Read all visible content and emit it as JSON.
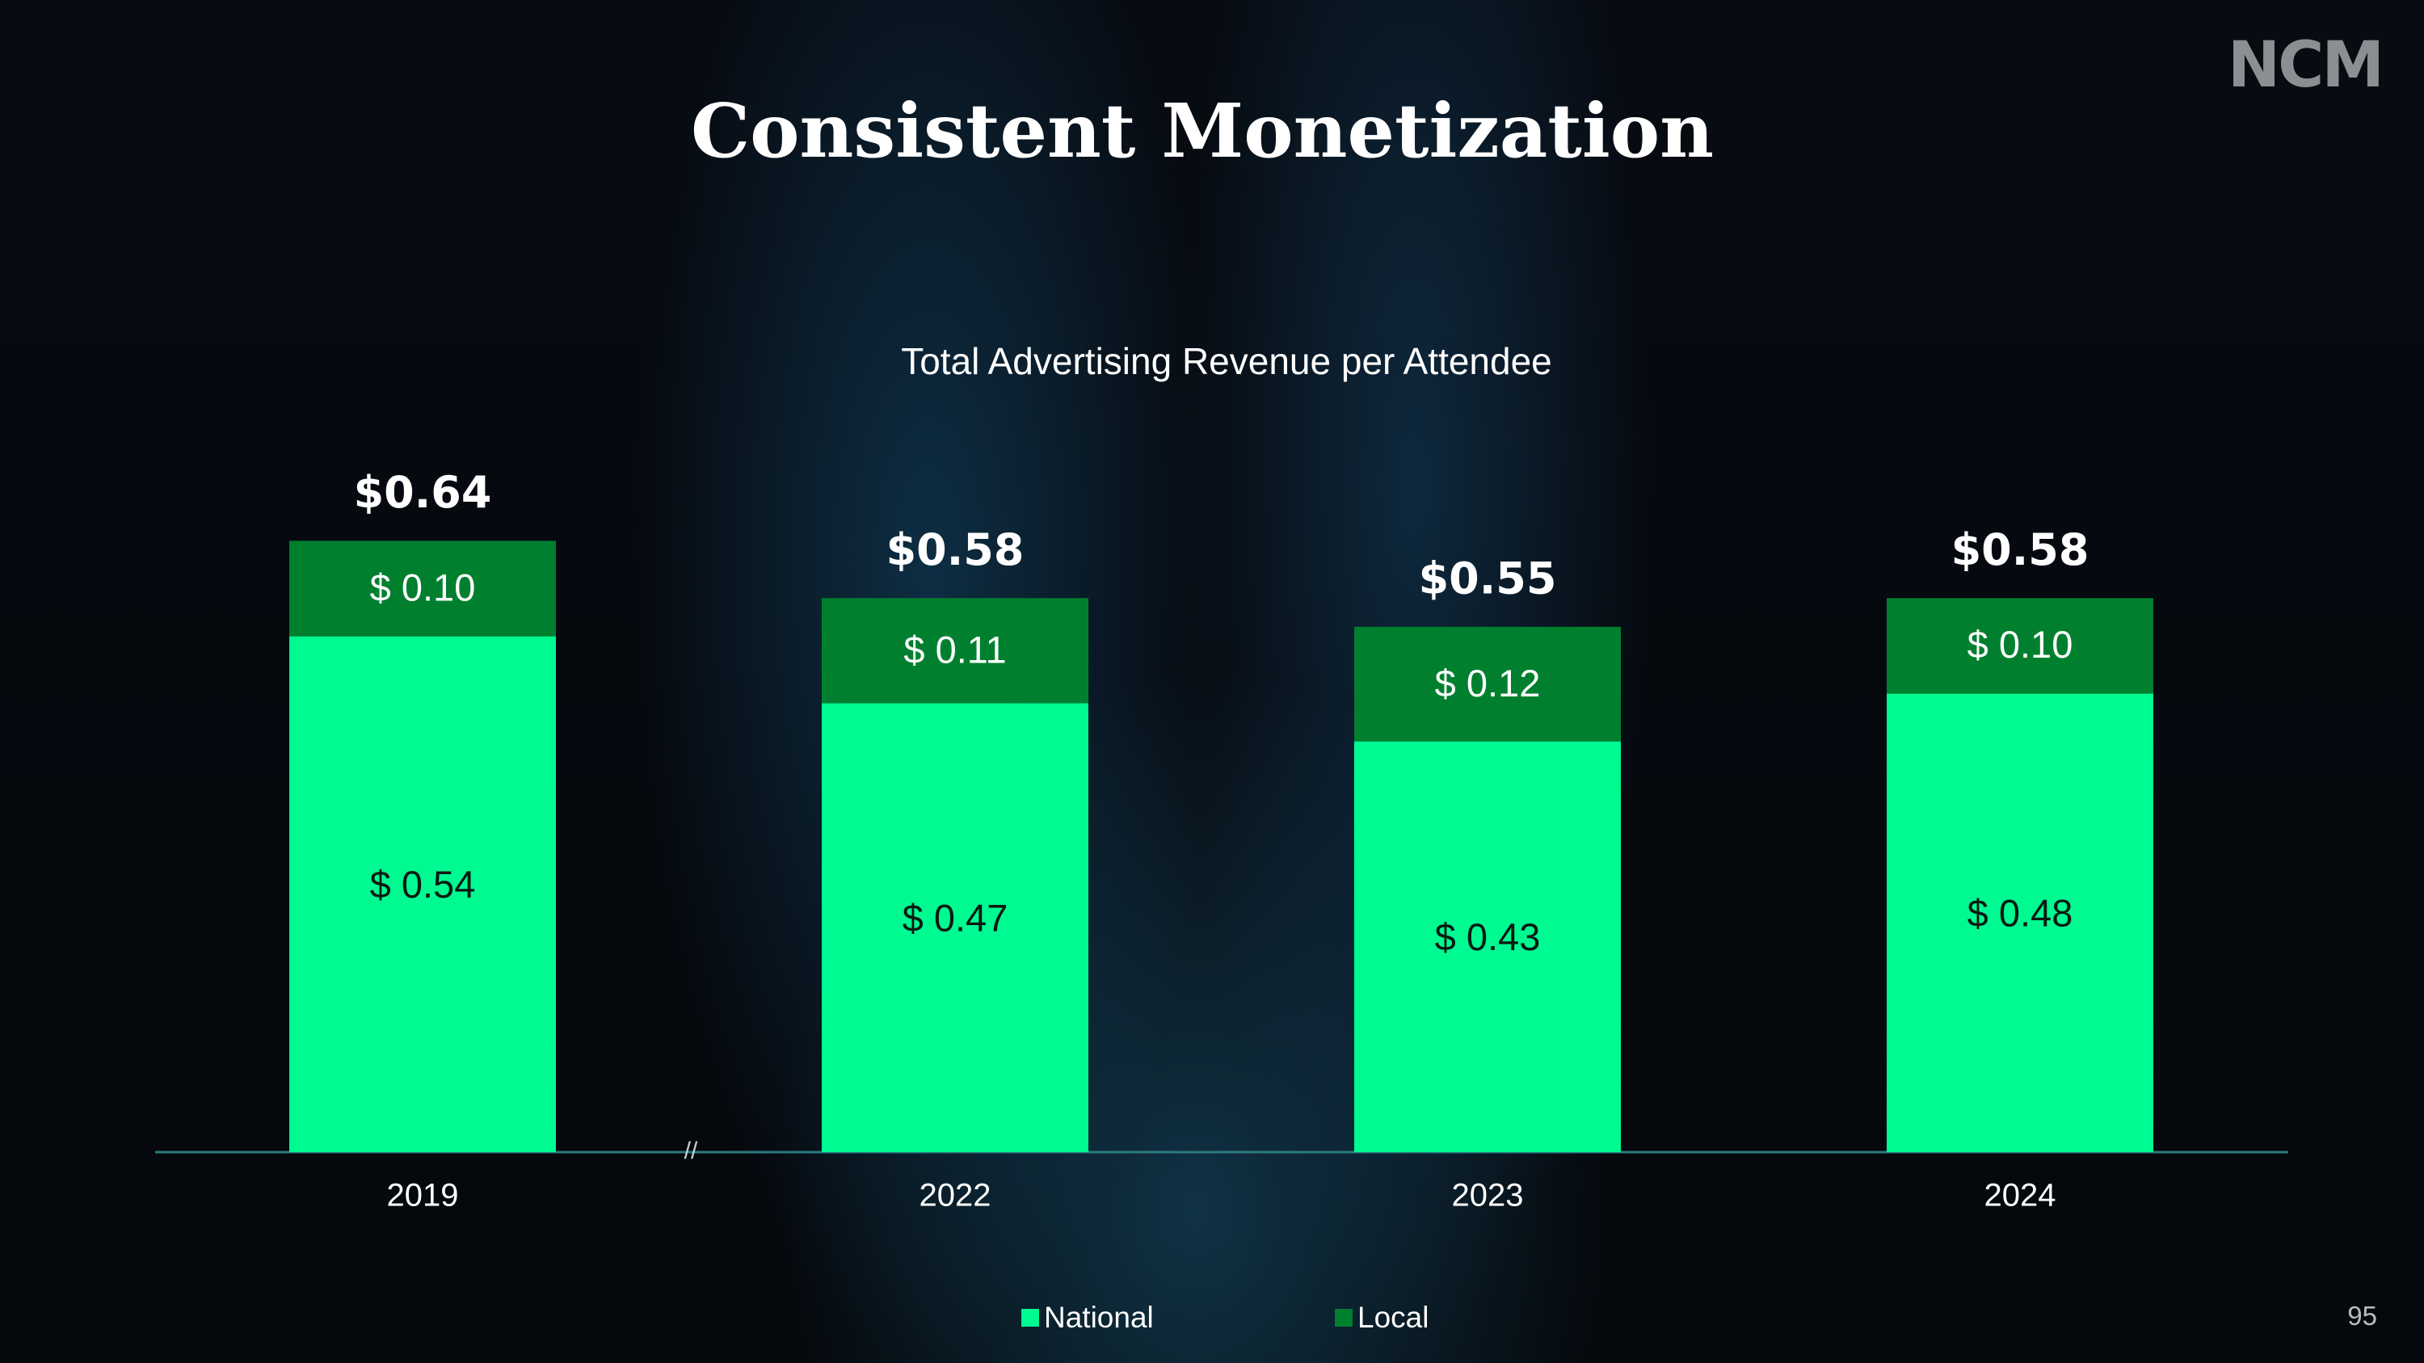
{
  "logo_text": "NCM",
  "title": "Consistent Monetization",
  "page_number": "95",
  "axis_break": "//",
  "colors": {
    "national": "#00fa92",
    "local": "#00802f",
    "axis": "#2a7a80"
  },
  "chart_data": {
    "type": "bar",
    "stacked": true,
    "title": "Total Advertising Revenue per Attendee",
    "xlabel": "",
    "ylabel": "",
    "categories": [
      "2019",
      "2022",
      "2023",
      "2024"
    ],
    "ylim": [
      0,
      0.686
    ],
    "grid": false,
    "legend_position": "bottom",
    "series": [
      {
        "name": "National",
        "values": [
          0.54,
          0.47,
          0.43,
          0.48
        ],
        "labels": [
          "$ 0.54",
          "$ 0.47",
          "$ 0.43",
          "$ 0.48"
        ]
      },
      {
        "name": "Local",
        "values": [
          0.1,
          0.11,
          0.12,
          0.1
        ],
        "labels": [
          "$ 0.10",
          "$ 0.11",
          "$ 0.12",
          "$ 0.10"
        ]
      }
    ],
    "totals": [
      "$0.64",
      "$0.58",
      "$0.55",
      "$0.58"
    ]
  }
}
